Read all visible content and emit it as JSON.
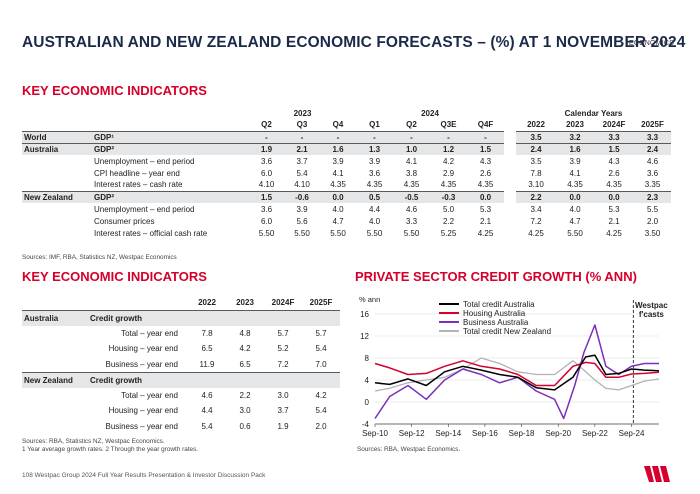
{
  "header": {
    "title": "AUSTRALIAN AND NEW ZEALAND ECONOMIC FORECASTS – (%) AT 1 NOVEMBER 2024",
    "section": "ECONOMICS"
  },
  "table1": {
    "heading": "KEY ECONOMIC INDICATORS",
    "year_headers": [
      "2023",
      "2024",
      "Calendar Years"
    ],
    "quarters": [
      "Q2",
      "Q3",
      "Q4",
      "Q1",
      "Q2",
      "Q3E",
      "Q4F"
    ],
    "years": [
      "2022",
      "2023",
      "2024F",
      "2025F"
    ],
    "rows": [
      {
        "region": "World",
        "indicator": "GDP¹",
        "q": [
          "-",
          "-",
          "-",
          "-",
          "-",
          "-",
          "-"
        ],
        "y": [
          "3.5",
          "3.2",
          "3.3",
          "3.3"
        ]
      },
      {
        "region": "Australia",
        "indicator": "GDP²",
        "q": [
          "1.9",
          "2.1",
          "1.6",
          "1.3",
          "1.0",
          "1.2",
          "1.5"
        ],
        "y": [
          "2.4",
          "1.6",
          "1.5",
          "2.4"
        ]
      },
      {
        "region": "",
        "indicator": "Unemployment – end period",
        "q": [
          "3.6",
          "3.7",
          "3.9",
          "3.9",
          "4.1",
          "4.2",
          "4.3"
        ],
        "y": [
          "3.5",
          "3.9",
          "4.3",
          "4.6"
        ]
      },
      {
        "region": "",
        "indicator": "CPI headline – year end",
        "q": [
          "6.0",
          "5.4",
          "4.1",
          "3.6",
          "3.8",
          "2.9",
          "2.6"
        ],
        "y": [
          "7.8",
          "4.1",
          "2.6",
          "3.6"
        ]
      },
      {
        "region": "",
        "indicator": "Interest rates – cash rate",
        "q": [
          "4.10",
          "4.10",
          "4.35",
          "4.35",
          "4.35",
          "4.35",
          "4.35"
        ],
        "y": [
          "3.10",
          "4.35",
          "4.35",
          "3.35"
        ]
      },
      {
        "region": "New Zealand",
        "indicator": "GDP²",
        "q": [
          "1.5",
          "-0.6",
          "0.0",
          "0.5",
          "-0.5",
          "-0.3",
          "0.0"
        ],
        "y": [
          "2.2",
          "0.0",
          "0.0",
          "2.3"
        ]
      },
      {
        "region": "",
        "indicator": "Unemployment – end period",
        "q": [
          "3.6",
          "3.9",
          "4.0",
          "4.4",
          "4.6",
          "5.0",
          "5.3"
        ],
        "y": [
          "3.4",
          "4.0",
          "5.3",
          "5.5"
        ]
      },
      {
        "region": "",
        "indicator": "Consumer prices",
        "q": [
          "6.0",
          "5.6",
          "4.7",
          "4.0",
          "3.3",
          "2.2",
          "2.1"
        ],
        "y": [
          "7.2",
          "4.7",
          "2.1",
          "2.0"
        ]
      },
      {
        "region": "",
        "indicator": "Interest rates – official cash rate",
        "q": [
          "5.50",
          "5.50",
          "5.50",
          "5.50",
          "5.50",
          "5.25",
          "4.25"
        ],
        "y": [
          "4.25",
          "5.50",
          "4.25",
          "3.50"
        ]
      }
    ],
    "source": "Sources: IMF, RBA, Statistics NZ, Westpac Economics"
  },
  "table2": {
    "heading": "KEY ECONOMIC INDICATORS",
    "years": [
      "2022",
      "2023",
      "2024F",
      "2025F"
    ],
    "sections": [
      {
        "region": "Australia",
        "title": "Credit growth",
        "rows": [
          {
            "label": "Total – year end",
            "v": [
              "7.8",
              "4.8",
              "5.7",
              "5.7"
            ]
          },
          {
            "label": "Housing – year end",
            "v": [
              "6.5",
              "4.2",
              "5.2",
              "5.4"
            ]
          },
          {
            "label": "Business – year end",
            "v": [
              "11.9",
              "6.5",
              "7.2",
              "7.0"
            ]
          }
        ]
      },
      {
        "region": "New Zealand",
        "title": "Credit growth",
        "rows": [
          {
            "label": "Total – year end",
            "v": [
              "4.6",
              "2.2",
              "3.0",
              "4.2"
            ]
          },
          {
            "label": "Housing – year end",
            "v": [
              "4.4",
              "3.0",
              "3.7",
              "5.4"
            ]
          },
          {
            "label": "Business – year end",
            "v": [
              "5.4",
              "0.6",
              "1.9",
              "2.0"
            ]
          }
        ]
      }
    ],
    "source1": "Sources: RBA, Statistics NZ, Westpac Economics.",
    "source2": "1 Year average growth rates. 2 Through the year growth rates."
  },
  "chart_data": {
    "type": "line",
    "title": "PRIVATE SECTOR CREDIT GROWTH (% ANN)",
    "ylabel": "% ann",
    "ylim": [
      -4,
      16
    ],
    "yticks": [
      -4,
      0,
      4,
      8,
      12,
      16
    ],
    "xlim": [
      2010.7,
      2026.2
    ],
    "xtick_labels": [
      "Sep-10",
      "Sep-12",
      "Sep-14",
      "Sep-16",
      "Sep-18",
      "Sep-20",
      "Sep-22",
      "Sep-24"
    ],
    "xtick_values": [
      2010.7,
      2012.7,
      2014.7,
      2016.7,
      2018.7,
      2020.7,
      2022.7,
      2024.7
    ],
    "forecast_start": 2024.8,
    "annotation": "Westpac f'casts",
    "series": [
      {
        "name": "Total credit Australia",
        "color": "#000000",
        "x": [
          2010.7,
          2011.5,
          2012.5,
          2013.5,
          2014.5,
          2015.5,
          2016.5,
          2017.5,
          2018.5,
          2019.5,
          2020.5,
          2021.5,
          2022.2,
          2022.7,
          2023.3,
          2024.0,
          2024.7,
          2025.4,
          2026.2
        ],
        "y": [
          3.5,
          3.2,
          4.2,
          3.0,
          5.5,
          6.5,
          5.8,
          5.0,
          4.5,
          2.6,
          2.2,
          4.5,
          8.2,
          8.5,
          5.0,
          5.2,
          6.0,
          5.8,
          5.7
        ]
      },
      {
        "name": "Housing Australia",
        "color": "#d5002b",
        "x": [
          2010.7,
          2011.5,
          2012.5,
          2013.5,
          2014.5,
          2015.5,
          2016.5,
          2017.5,
          2018.5,
          2019.5,
          2020.5,
          2021.5,
          2022.2,
          2022.7,
          2023.3,
          2024.0,
          2024.7,
          2025.4,
          2026.2
        ],
        "y": [
          7.0,
          6.2,
          5.0,
          5.2,
          6.5,
          7.5,
          6.5,
          6.0,
          5.0,
          3.0,
          3.0,
          6.5,
          7.2,
          7.0,
          4.5,
          4.5,
          5.1,
          5.2,
          5.4
        ]
      },
      {
        "name": "Business Australia",
        "color": "#7a2fbf",
        "x": [
          2010.7,
          2011.5,
          2012.5,
          2013.5,
          2014.5,
          2015.5,
          2016.5,
          2017.5,
          2018.5,
          2019.5,
          2020.5,
          2021.0,
          2021.6,
          2022.1,
          2022.7,
          2023.3,
          2024.0,
          2024.7,
          2025.4,
          2026.2
        ],
        "y": [
          -3.0,
          1.0,
          3.0,
          0.5,
          4.0,
          6.0,
          5.0,
          3.5,
          4.5,
          2.0,
          0.5,
          -3.0,
          3.0,
          9.0,
          14.0,
          6.5,
          5.0,
          6.5,
          7.0,
          7.0
        ]
      },
      {
        "name": "Total credit New Zealand",
        "color": "#b3b3b3",
        "x": [
          2010.7,
          2011.5,
          2012.5,
          2013.5,
          2014.5,
          2015.5,
          2016.5,
          2017.5,
          2018.5,
          2019.5,
          2020.5,
          2021.5,
          2022.2,
          2022.7,
          2023.3,
          2024.0,
          2024.7,
          2025.4,
          2026.2
        ],
        "y": [
          2.0,
          2.5,
          3.5,
          4.0,
          4.5,
          6.0,
          8.0,
          7.0,
          5.5,
          5.0,
          5.0,
          7.5,
          5.5,
          4.0,
          2.5,
          2.2,
          3.0,
          3.8,
          4.2
        ]
      }
    ],
    "source": "Sources: RBA, Westpac Economics."
  },
  "footer": {
    "text": "108    Westpac Group 2024 Full Year Results Presentation & Investor Discussion Pack"
  },
  "colors": {
    "brand_red": "#d5002b",
    "navy": "#1c2a4a",
    "shade": "#e5e6e8"
  }
}
